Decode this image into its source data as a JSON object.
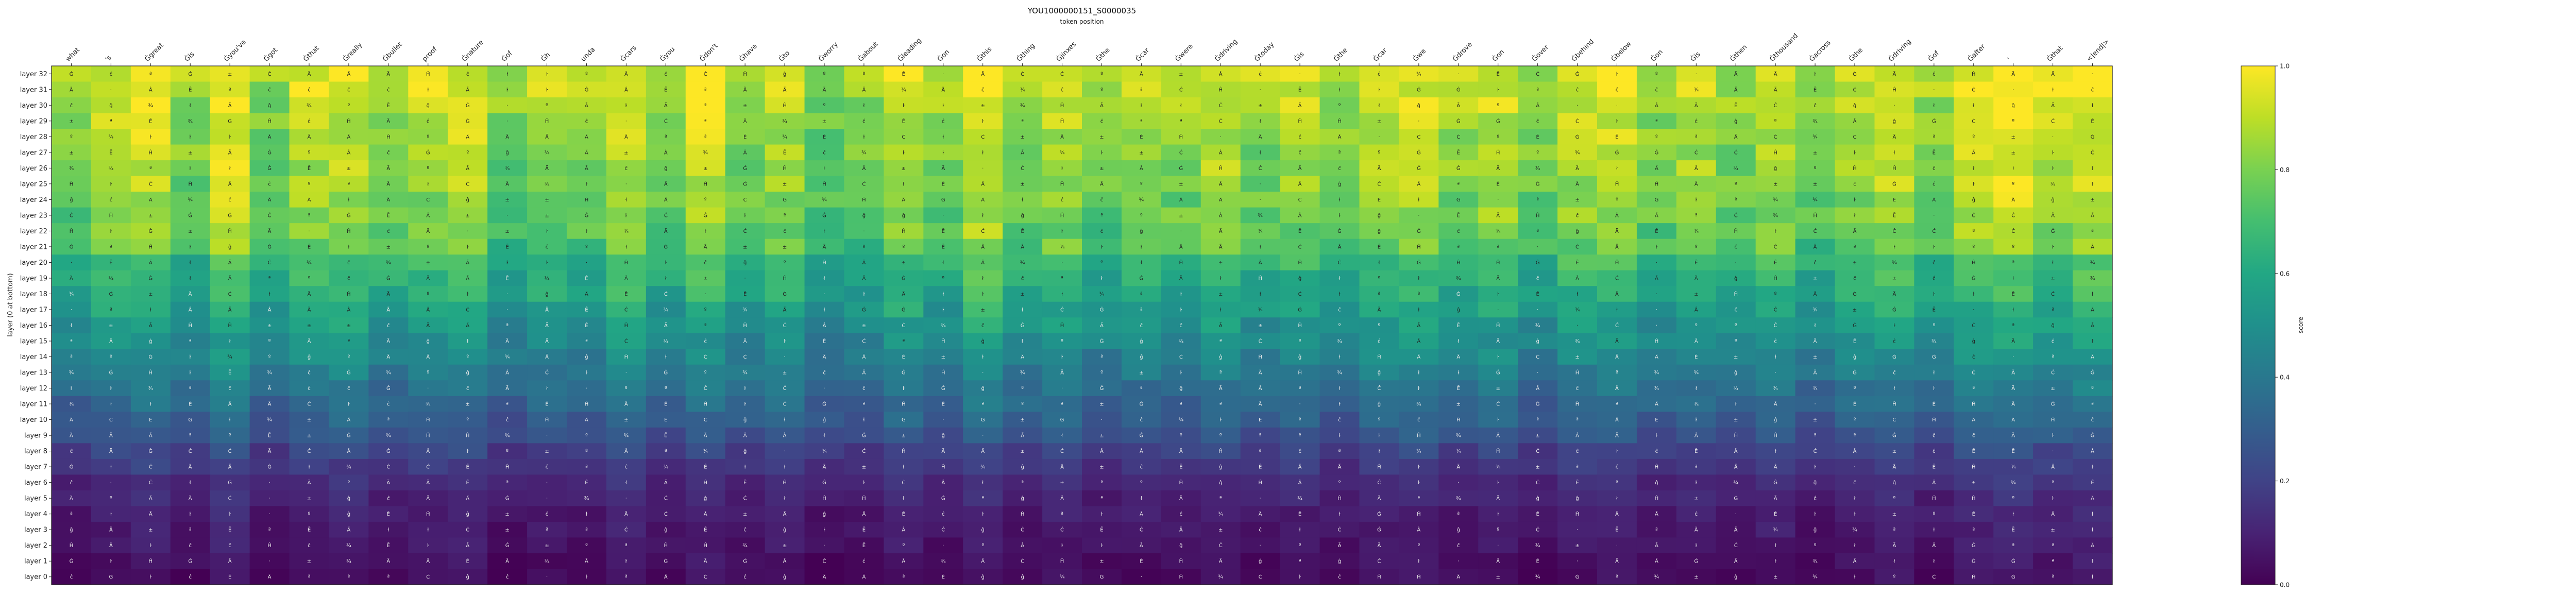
{
  "chart_data": {
    "type": "heatmap",
    "title": "YOU1000000151_S0000035",
    "subtitle": "token position",
    "xlabel": "token position",
    "ylabel": "layer (0 at bottom)",
    "colorbar_label": "score",
    "colormap": "viridis",
    "vmin": 0.0,
    "vmax": 1.0,
    "colorbar_ticks": [
      "0.0",
      "0.2",
      "0.4",
      "0.6",
      "0.8",
      "1.0"
    ],
    "x_tokens": [
      "what",
      "'s",
      "Ġgreat",
      "Ġis",
      "Ġyou've",
      "Ġgot",
      "Ġthat",
      "Ġreally",
      "Ġbullet",
      "proof",
      "Ġnature",
      "Ġof",
      "Ġh",
      "unda",
      "Ġcars",
      "Ġyou",
      "Ġdon't",
      "Ġhave",
      "Ġto",
      "Ġworry",
      "Ġabout",
      "Ġleading",
      "Ġon",
      "Ġthis",
      "Ġthing",
      "Ġjinxes",
      "Ġthe",
      "Ġcar",
      "Ġwere",
      "Ġdriving",
      "Ġtoday",
      "Ġis",
      "Ġthe",
      "Ġcar",
      "Ġwe",
      "Ġdrove",
      "Ġon",
      "Ġover",
      "Ġbehind",
      "Ġbelow",
      "Ġon",
      "Ġis",
      "Ġthen",
      "Ġthousand",
      "Ġacross",
      "Ġthe",
      "Ġdriving",
      "Ġof",
      "Ġafter",
      "'",
      "Ġthat",
      "<|end|>"
    ],
    "y_layers": [
      "layer 32",
      "layer 31",
      "layer 30",
      "layer 29",
      "layer 28",
      "layer 27",
      "layer 26",
      "layer 25",
      "layer 24",
      "layer 23",
      "layer 22",
      "layer 21",
      "layer 20",
      "layer 19",
      "layer 18",
      "layer 17",
      "layer 16",
      "layer 15",
      "layer 14",
      "layer 13",
      "layer 12",
      "layer 11",
      "layer 10",
      "layer 9",
      "layer 8",
      "layer 7",
      "layer 6",
      "layer 5",
      "layer 4",
      "layer 3",
      "layer 2",
      "layer 1",
      "layer 0"
    ],
    "row_profile": [
      0.92,
      0.9,
      0.88,
      0.86,
      0.85,
      0.84,
      0.83,
      0.82,
      0.8,
      0.79,
      0.76,
      0.74,
      0.66,
      0.63,
      0.6,
      0.56,
      0.52,
      0.48,
      0.45,
      0.41,
      0.37,
      0.34,
      0.3,
      0.26,
      0.2,
      0.16,
      0.12,
      0.1,
      0.08,
      0.07,
      0.06,
      0.04,
      0.03
    ],
    "column_offsets": [
      -0.05,
      0.03,
      0.08,
      -0.04,
      0.1,
      -0.06,
      0.04,
      0.06,
      -0.02,
      0.02,
      0.05,
      -0.07,
      0.0,
      -0.03,
      0.07,
      -0.05,
      0.06,
      -0.04,
      0.02,
      -0.08,
      -0.06,
      0.05,
      -0.04,
      0.1,
      -0.02,
      0.03,
      -0.05,
      0.0,
      -0.03,
      0.04,
      -0.04,
      0.02,
      -0.05,
      0.03,
      0.06,
      -0.02,
      0.04,
      -0.06,
      0.03,
      0.05,
      -0.04,
      0.02,
      -0.05,
      0.03,
      -0.06,
      0.01,
      0.06,
      -0.03,
      0.08,
      0.12,
      0.04,
      0.1
    ],
    "cell_glyphs": [
      "Ä",
      "ª",
      "ĉ",
      "ł",
      "·",
      "Â",
      "ĝ",
      "Ġ",
      "Ċ",
      "ŀ",
      "±",
      "º",
      "¾",
      "Ã",
      "Ē",
      "Ĥ"
    ]
  }
}
